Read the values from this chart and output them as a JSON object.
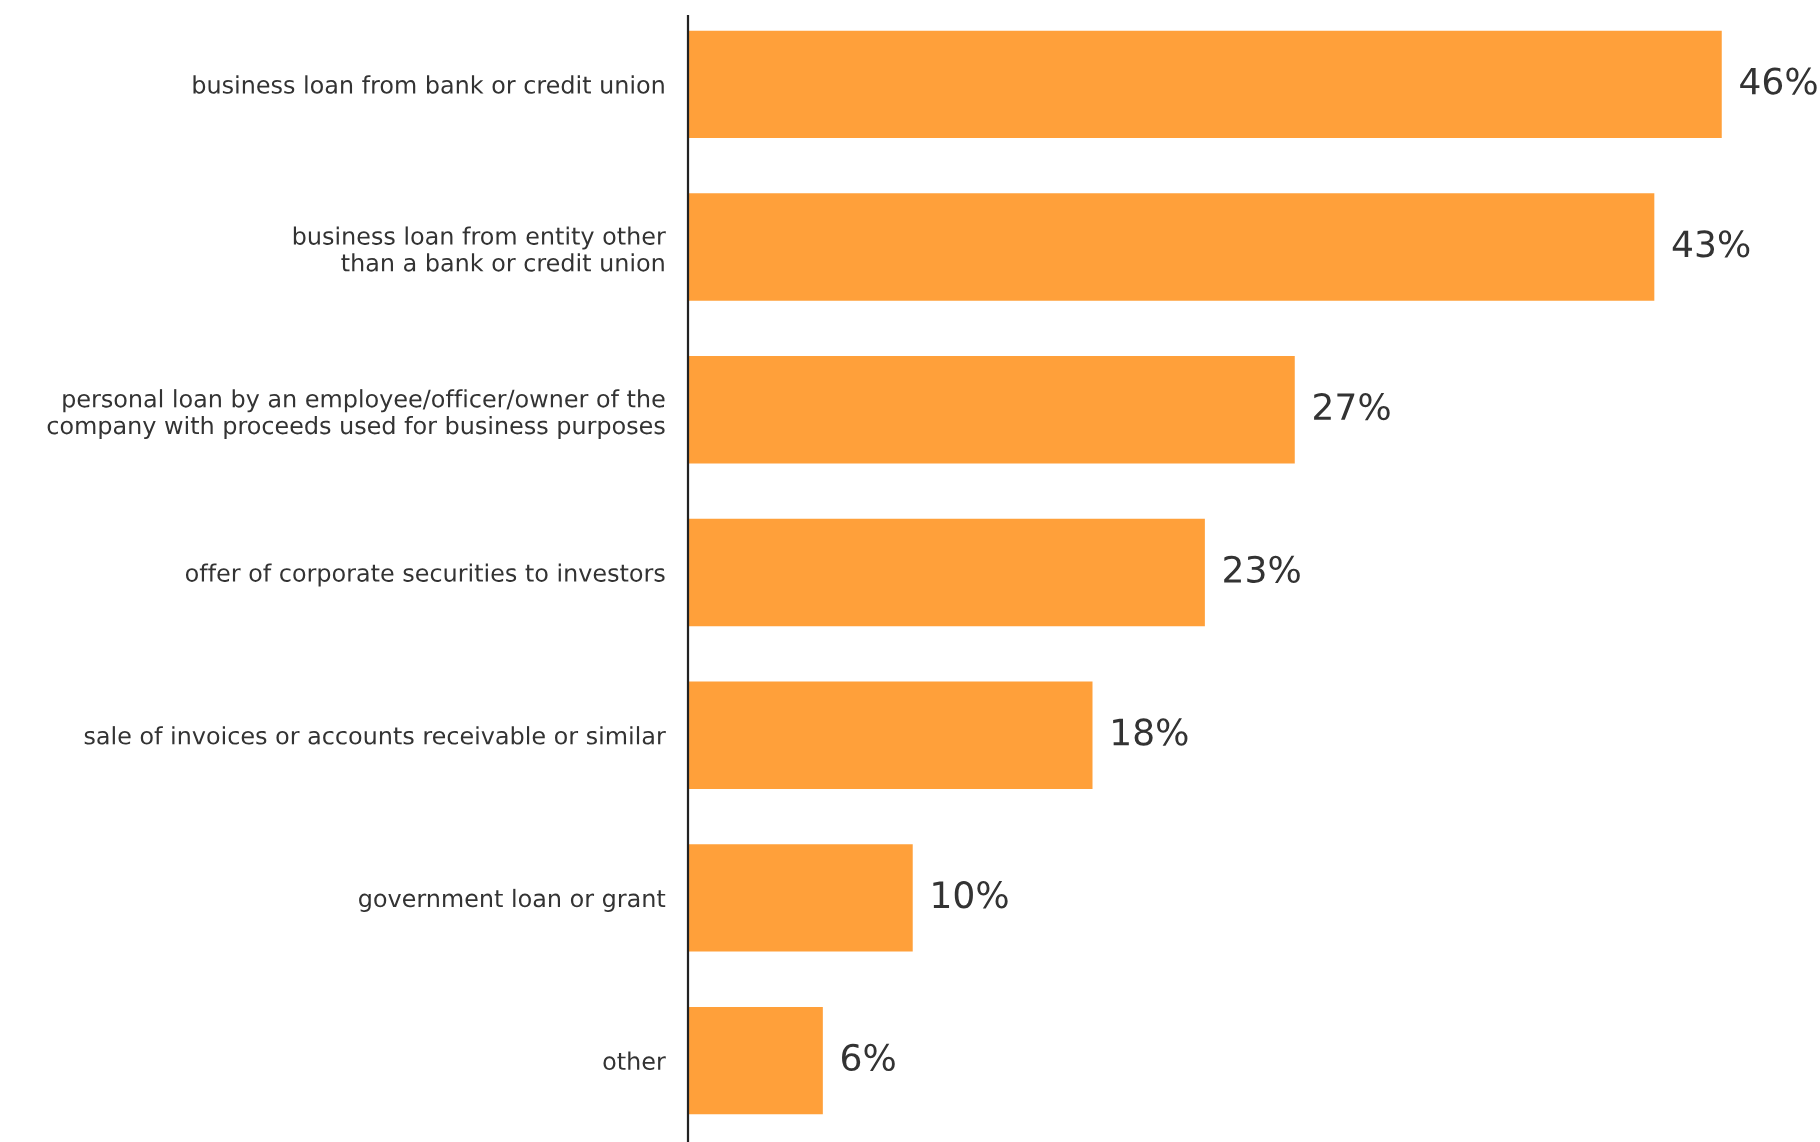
{
  "chart_data": {
    "type": "bar",
    "orientation": "horizontal",
    "categories": [
      "business loan from bank or credit union",
      "business loan from entity other\nthan a bank or credit union",
      "personal loan by an employee/officer/owner of the\ncompany with proceeds used for business purposes",
      "offer of corporate securities to investors",
      "sale of invoices or accounts receivable or similar",
      "government loan or grant",
      "other"
    ],
    "values": [
      46,
      43,
      27,
      23,
      18,
      10,
      6
    ],
    "value_labels": [
      "46%",
      "43%",
      "27%",
      "23%",
      "18%",
      "10%",
      "6%"
    ],
    "color": "#ffa03a",
    "grid": false,
    "legend": false
  }
}
